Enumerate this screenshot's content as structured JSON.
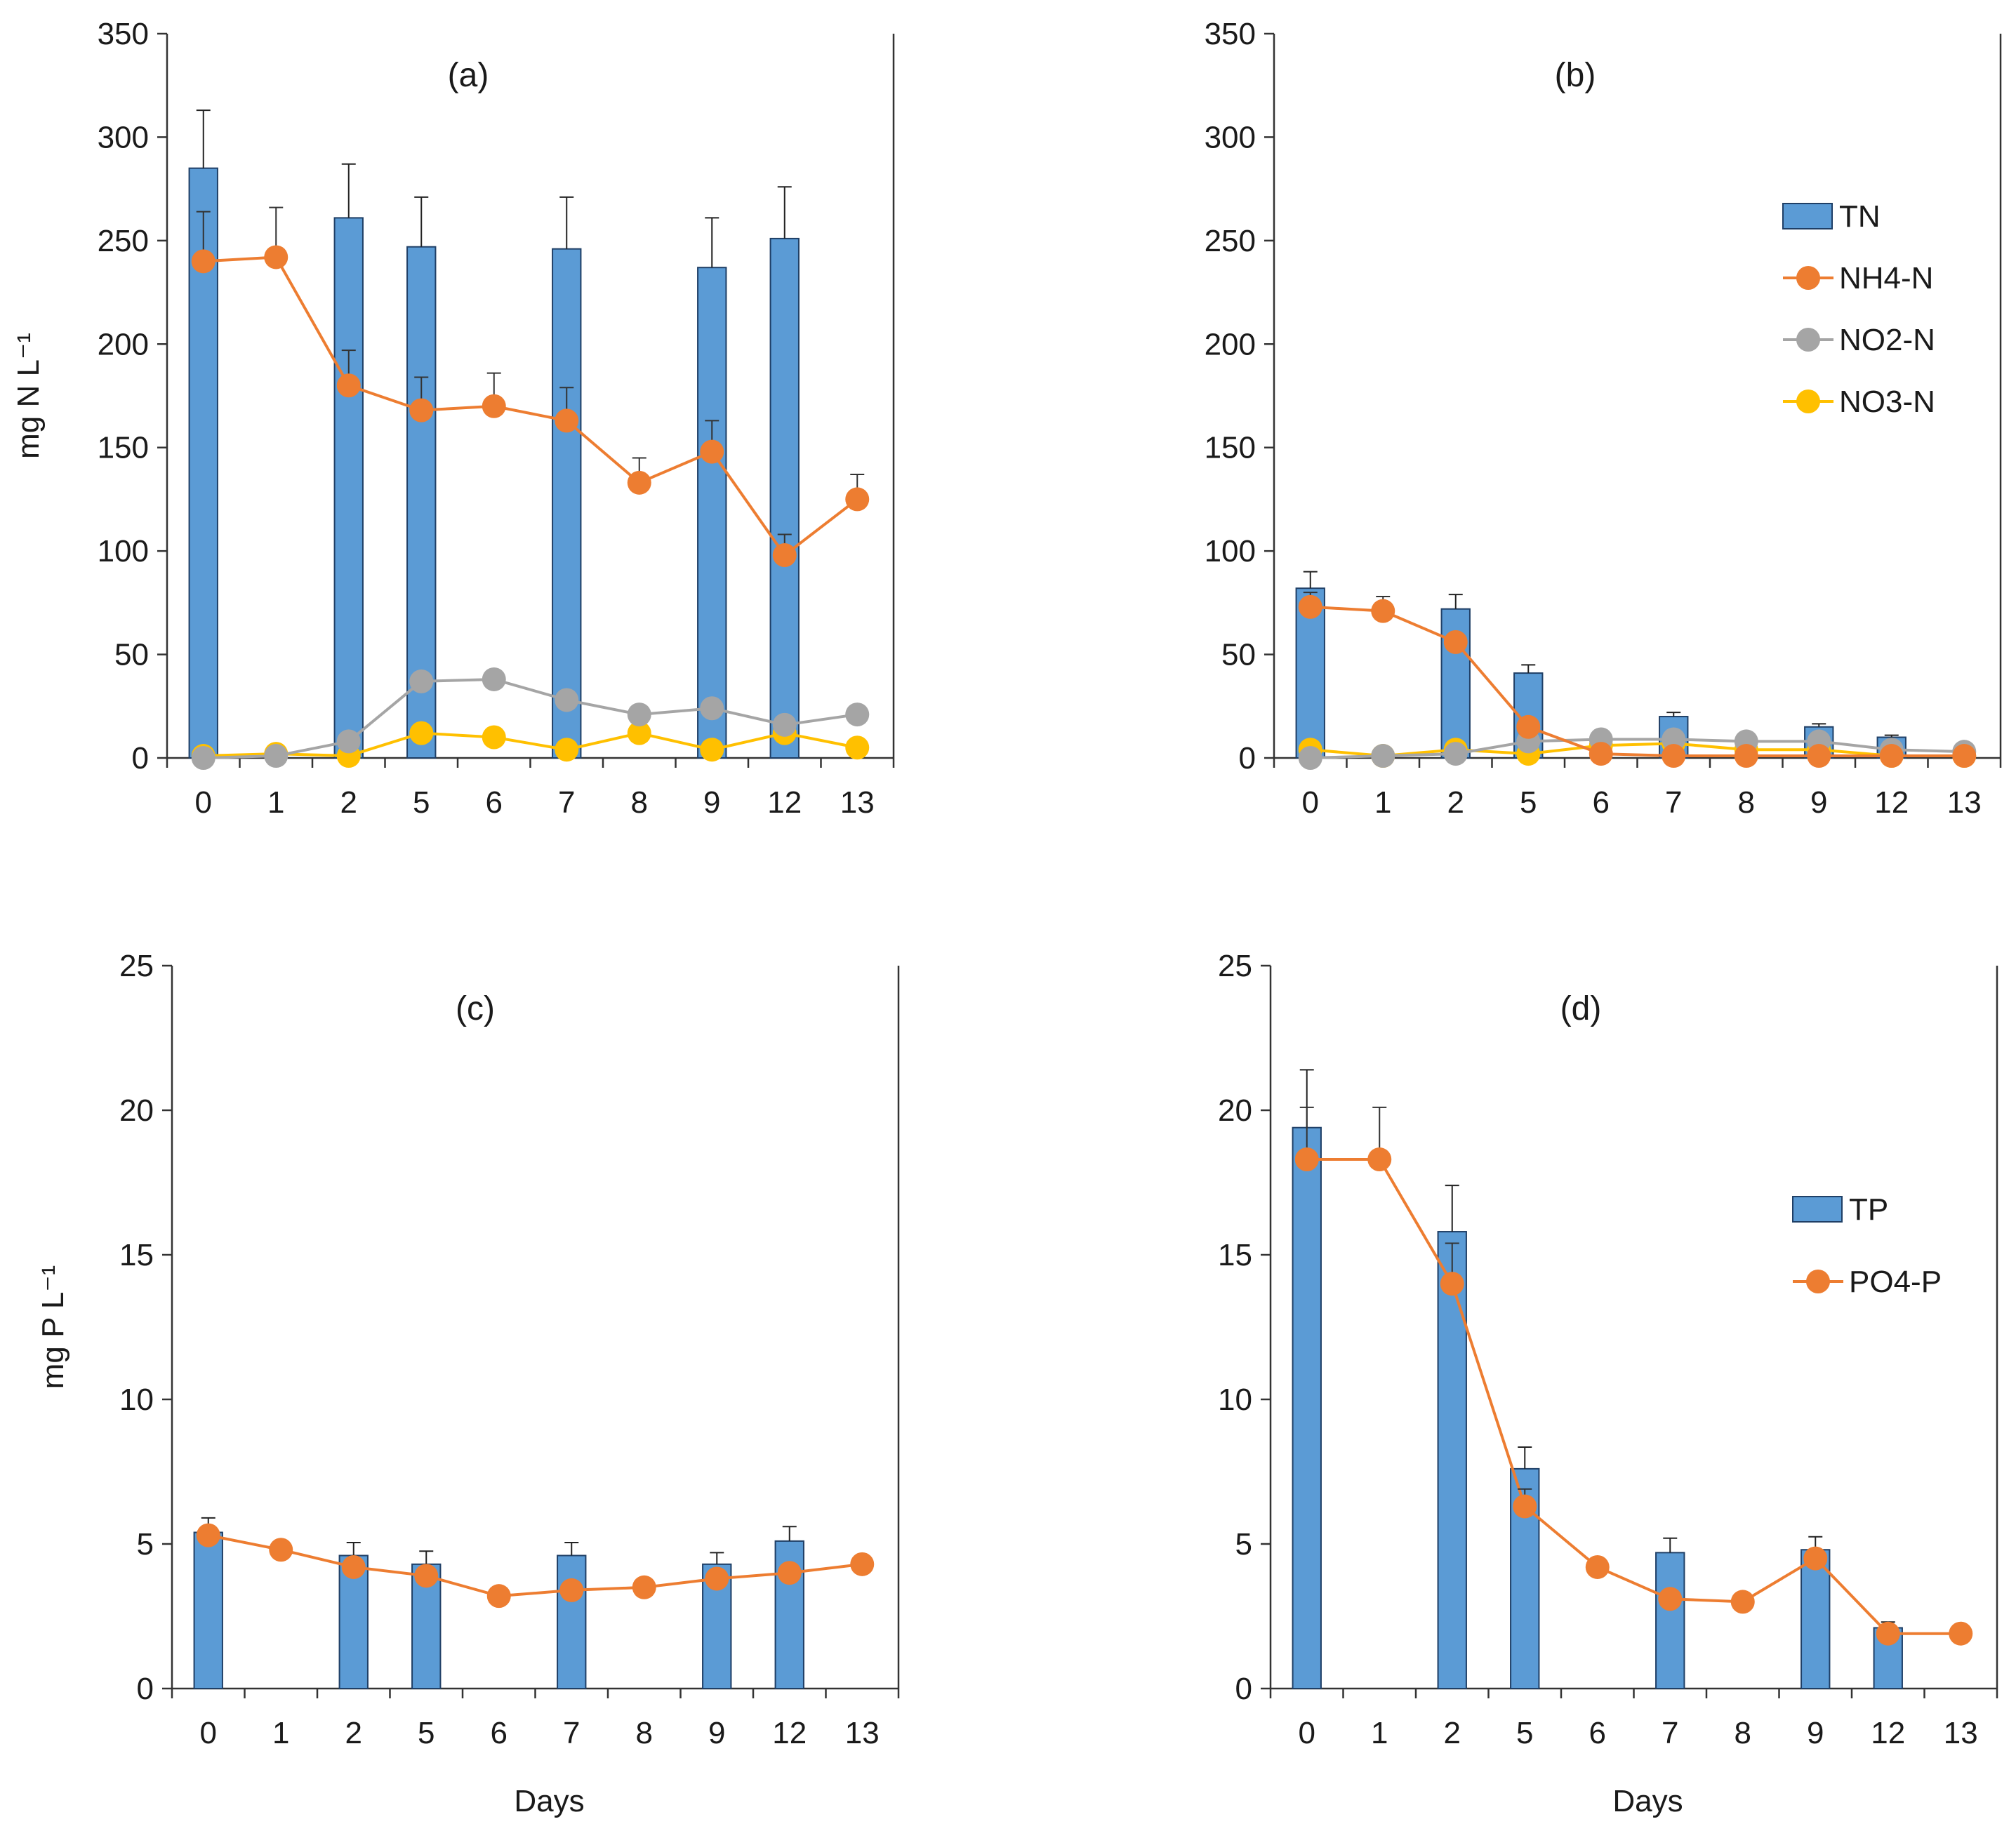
{
  "chart_data": [
    {
      "panel": "(a)",
      "type": "bar+line",
      "title": "(a)",
      "ylabel": "mg N L⁻¹",
      "xlabel": "",
      "categories": [
        "0",
        "1",
        "2",
        "5",
        "6",
        "7",
        "8",
        "9",
        "12",
        "13"
      ],
      "ylim": [
        0,
        350
      ],
      "yticks": [
        "0",
        "50",
        "100",
        "150",
        "200",
        "250",
        "300",
        "350"
      ],
      "legend": null,
      "series": [
        {
          "name": "TN",
          "kind": "bar",
          "color": "#5b9bd5",
          "values": [
            285,
            null,
            261,
            247,
            null,
            246,
            null,
            237,
            251,
            null
          ],
          "errors": [
            28,
            null,
            26,
            24,
            null,
            25,
            null,
            24,
            25,
            null
          ]
        },
        {
          "name": "NH4-N",
          "kind": "line",
          "color": "#ed7d31",
          "values": [
            240,
            242,
            180,
            168,
            170,
            163,
            133,
            148,
            98,
            125
          ],
          "errors": [
            24,
            24,
            17,
            16,
            16,
            16,
            12,
            15,
            10,
            12
          ]
        },
        {
          "name": "NO2-N",
          "kind": "line",
          "color": "#a5a5a5",
          "values": [
            0,
            1,
            8,
            37,
            38,
            28,
            21,
            24,
            16,
            21
          ],
          "errors": [
            null,
            null,
            null,
            null,
            null,
            null,
            null,
            null,
            null,
            null
          ]
        },
        {
          "name": "NO3-N",
          "kind": "line",
          "color": "#ffc000",
          "values": [
            1,
            2,
            1,
            12,
            10,
            4,
            12,
            4,
            12,
            5
          ],
          "errors": [
            null,
            null,
            null,
            null,
            null,
            null,
            null,
            null,
            null,
            null
          ]
        }
      ]
    },
    {
      "panel": "(b)",
      "type": "bar+line",
      "title": "(b)",
      "ylabel": "",
      "xlabel": "",
      "categories": [
        "0",
        "1",
        "2",
        "5",
        "6",
        "7",
        "8",
        "9",
        "12",
        "13"
      ],
      "ylim": [
        0,
        350
      ],
      "yticks": [
        "0",
        "50",
        "100",
        "150",
        "200",
        "250",
        "300",
        "350"
      ],
      "legend": [
        "TN",
        "NH4-N",
        "NO2-N",
        "NO3-N"
      ],
      "series": [
        {
          "name": "TN",
          "kind": "bar",
          "color": "#5b9bd5",
          "values": [
            82,
            null,
            72,
            41,
            null,
            20,
            null,
            15,
            10,
            null
          ],
          "errors": [
            8,
            null,
            7,
            4,
            null,
            2,
            null,
            1.5,
            1,
            null
          ]
        },
        {
          "name": "NH4-N",
          "kind": "line",
          "color": "#ed7d31",
          "values": [
            73,
            71,
            56,
            15,
            2,
            1,
            1,
            1,
            1,
            1
          ],
          "errors": [
            7,
            7,
            null,
            null,
            null,
            null,
            null,
            null,
            null,
            null
          ]
        },
        {
          "name": "NO2-N",
          "kind": "line",
          "color": "#a5a5a5",
          "values": [
            0,
            1,
            2,
            8,
            9,
            9,
            8,
            8,
            4,
            3
          ],
          "errors": [
            null,
            null,
            null,
            null,
            null,
            null,
            null,
            null,
            null,
            null
          ]
        },
        {
          "name": "NO3-N",
          "kind": "line",
          "color": "#ffc000",
          "values": [
            4,
            1,
            4,
            2,
            6,
            7,
            4,
            4,
            1,
            1
          ],
          "errors": [
            null,
            null,
            null,
            null,
            null,
            null,
            null,
            null,
            null,
            null
          ]
        }
      ]
    },
    {
      "panel": "(c)",
      "type": "bar+line",
      "title": "(c)",
      "ylabel": "mg P L⁻¹",
      "xlabel": "Days",
      "categories": [
        "0",
        "1",
        "2",
        "5",
        "6",
        "7",
        "8",
        "9",
        "12",
        "13"
      ],
      "ylim": [
        0,
        25
      ],
      "yticks": [
        "0",
        "5",
        "10",
        "15",
        "20",
        "25"
      ],
      "legend": null,
      "series": [
        {
          "name": "TP",
          "kind": "bar",
          "color": "#5b9bd5",
          "values": [
            5.4,
            null,
            4.6,
            4.3,
            null,
            4.6,
            null,
            4.3,
            5.1,
            null
          ],
          "errors": [
            0.5,
            null,
            0.45,
            0.45,
            null,
            0.45,
            null,
            0.4,
            0.5,
            null
          ]
        },
        {
          "name": "PO4-P",
          "kind": "line",
          "color": "#ed7d31",
          "values": [
            5.3,
            4.8,
            4.2,
            3.9,
            3.2,
            3.4,
            3.5,
            3.8,
            4.0,
            4.3
          ],
          "errors": [
            null,
            null,
            null,
            null,
            null,
            null,
            null,
            null,
            null,
            null
          ]
        }
      ]
    },
    {
      "panel": "(d)",
      "type": "bar+line",
      "title": "(d)",
      "ylabel": "",
      "xlabel": "Days",
      "categories": [
        "0",
        "1",
        "2",
        "5",
        "6",
        "7",
        "8",
        "9",
        "12",
        "13"
      ],
      "ylim": [
        0,
        25
      ],
      "yticks": [
        "0",
        "5",
        "10",
        "15",
        "20",
        "25"
      ],
      "legend": [
        "TP",
        "PO4-P"
      ],
      "series": [
        {
          "name": "TP",
          "kind": "bar",
          "color": "#5b9bd5",
          "values": [
            19.4,
            null,
            15.8,
            7.6,
            null,
            4.7,
            null,
            4.8,
            2.1,
            null
          ],
          "errors": [
            2.0,
            null,
            1.6,
            0.75,
            null,
            0.5,
            null,
            0.45,
            0.2,
            null
          ]
        },
        {
          "name": "PO4-P",
          "kind": "line",
          "color": "#ed7d31",
          "values": [
            18.3,
            18.3,
            14.0,
            6.3,
            4.2,
            3.1,
            3.0,
            4.5,
            1.9,
            1.9
          ],
          "errors": [
            1.8,
            1.8,
            1.4,
            0.6,
            null,
            null,
            null,
            null,
            null,
            null
          ]
        }
      ]
    }
  ]
}
